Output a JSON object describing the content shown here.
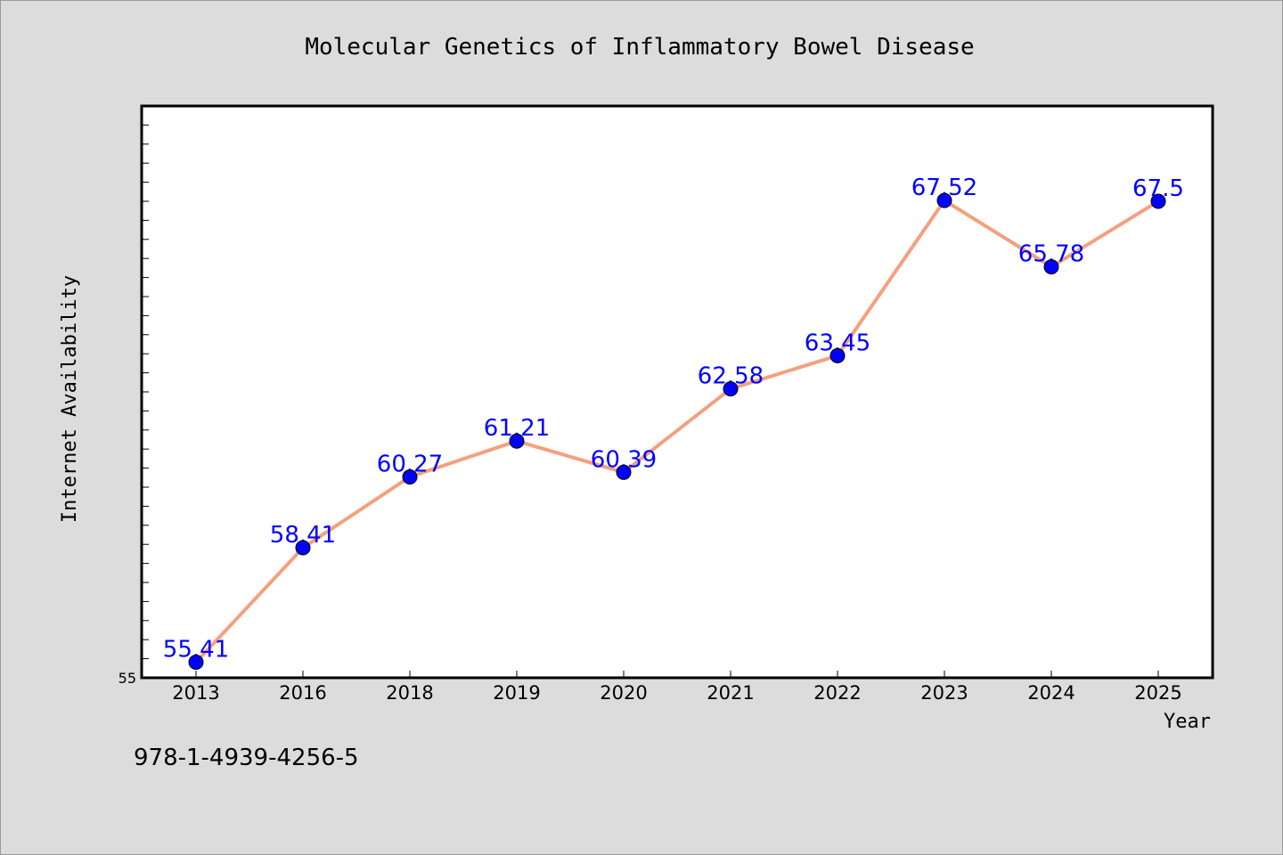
{
  "chart_data": {
    "type": "line",
    "title": "Molecular Genetics of Inflammatory Bowel Disease",
    "xlabel": "Year",
    "ylabel": "Internet Availability",
    "categories": [
      "2013",
      "2016",
      "2018",
      "2019",
      "2020",
      "2021",
      "2022",
      "2023",
      "2024",
      "2025"
    ],
    "series": [
      {
        "values": [
          55.41,
          58.41,
          60.27,
          61.21,
          60.39,
          62.58,
          63.45,
          67.52,
          65.78,
          67.5
        ],
        "labels": [
          "55.41",
          "58.41",
          "60.27",
          "61.21",
          "60.39",
          "62.58",
          "63.45",
          "67.52",
          "65.78",
          "67.5"
        ]
      }
    ],
    "ylim": [
      55,
      70
    ],
    "ytick_labels": [
      "55"
    ],
    "grid": false,
    "line_color": "#f4a07e",
    "marker_color": "#0000ff",
    "label_color": "#0000ff"
  },
  "footer": {
    "code": "978-1-4939-4256-5"
  }
}
